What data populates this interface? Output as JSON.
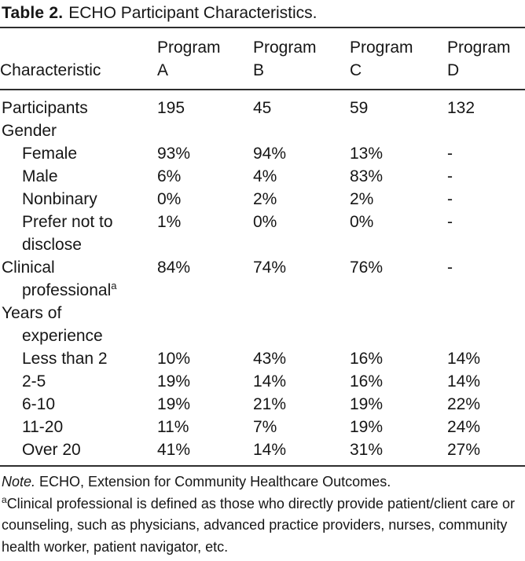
{
  "colors": {
    "background": "#ffffff",
    "text": "#161616",
    "rule": "#2e2e2e"
  },
  "title": {
    "number": "Table 2.",
    "caption": "ECHO Participant Characteristics."
  },
  "header": {
    "characteristic": "Characteristic",
    "columns": [
      {
        "line1": "Program",
        "line2": "A"
      },
      {
        "line1": "Program",
        "line2": "B"
      },
      {
        "line1": "Program",
        "line2": "C"
      },
      {
        "line1": "Program",
        "line2": "D"
      }
    ]
  },
  "table": {
    "rows": [
      {
        "lines": [
          {
            "text": "Participants",
            "indent": 0
          }
        ],
        "values": [
          "195",
          "45",
          "59",
          "132"
        ]
      },
      {
        "lines": [
          {
            "text": "Gender",
            "indent": 0
          }
        ],
        "values": [
          "",
          "",
          "",
          ""
        ]
      },
      {
        "lines": [
          {
            "text": "Female",
            "indent": 1
          }
        ],
        "values": [
          "93%",
          "94%",
          "13%",
          "-"
        ]
      },
      {
        "lines": [
          {
            "text": "Male",
            "indent": 1
          }
        ],
        "values": [
          "6%",
          "4%",
          "83%",
          "-"
        ]
      },
      {
        "lines": [
          {
            "text": "Nonbinary",
            "indent": 1
          }
        ],
        "values": [
          "0%",
          "2%",
          "2%",
          "-"
        ]
      },
      {
        "lines": [
          {
            "text": "Prefer not to",
            "indent": 1
          },
          {
            "text": "disclose",
            "indent": 1
          }
        ],
        "values": [
          "1%",
          "0%",
          "0%",
          "-"
        ]
      },
      {
        "lines": [
          {
            "text": "Clinical",
            "indent": 0
          },
          {
            "text": "professional",
            "indent": 1,
            "sup": "a"
          }
        ],
        "values": [
          "84%",
          "74%",
          "76%",
          "-"
        ]
      },
      {
        "lines": [
          {
            "text": "Years of",
            "indent": 0
          },
          {
            "text": "experience",
            "indent": 1
          }
        ],
        "values": [
          "",
          "",
          "",
          ""
        ]
      },
      {
        "lines": [
          {
            "text": "Less than 2",
            "indent": 1
          }
        ],
        "values": [
          "10%",
          "43%",
          "16%",
          "14%"
        ]
      },
      {
        "lines": [
          {
            "text": "2-5",
            "indent": 1
          }
        ],
        "values": [
          "19%",
          "14%",
          "16%",
          "14%"
        ]
      },
      {
        "lines": [
          {
            "text": "6-10",
            "indent": 1
          }
        ],
        "values": [
          "19%",
          "21%",
          "19%",
          "22%"
        ]
      },
      {
        "lines": [
          {
            "text": "11-20",
            "indent": 1
          }
        ],
        "values": [
          "11%",
          "7%",
          "19%",
          "24%"
        ]
      },
      {
        "lines": [
          {
            "text": "Over 20",
            "indent": 1
          }
        ],
        "values": [
          "41%",
          "14%",
          "31%",
          "27%"
        ]
      }
    ]
  },
  "notes": {
    "note": {
      "prefix": "Note.",
      "text": " ECHO, Extension for Community Healthcare Outcomes."
    },
    "footnote": {
      "marker": "a",
      "text": "Clinical professional is defined as those who directly provide patient/client care or counseling, such as physicians, advanced practice providers, nurses, community health worker, patient navigator, etc."
    }
  }
}
